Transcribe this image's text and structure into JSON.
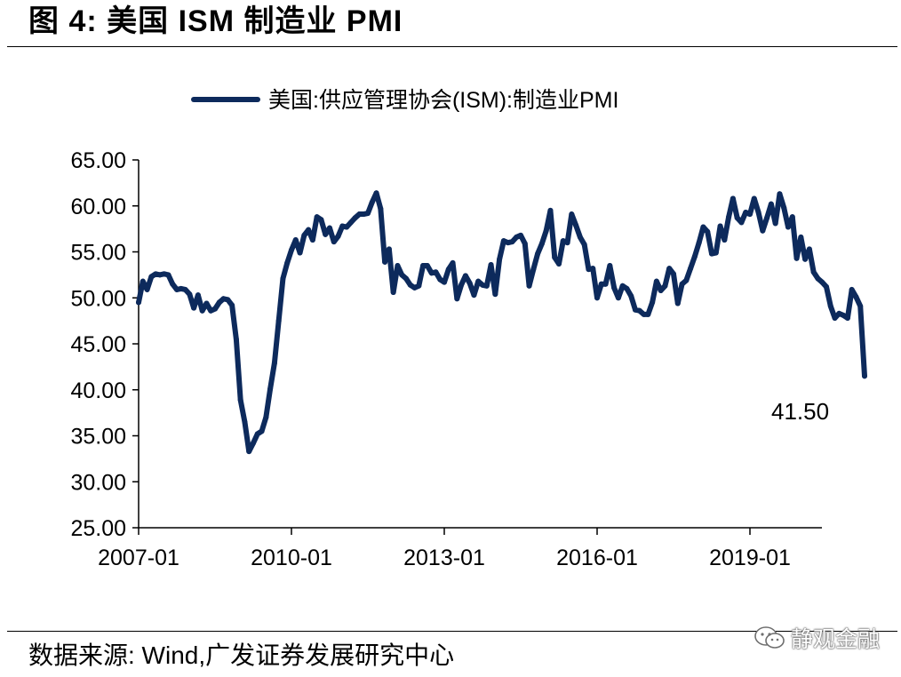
{
  "header": {
    "title": "图 4:  美国 ISM 制造业 PMI"
  },
  "footer": {
    "source": "数据来源:  Wind,广发证券发展研究中心",
    "watermark_text": "静观金融",
    "watermark_icon": "wechat-icon"
  },
  "colors": {
    "series": "#0d2a5c",
    "axis": "#000000",
    "text": "#000000"
  },
  "chart_data": {
    "type": "line",
    "title": "",
    "xlabel": "",
    "ylabel": "",
    "ylim": [
      25,
      65
    ],
    "y_ticks": [
      "25.00",
      "30.00",
      "35.00",
      "40.00",
      "45.00",
      "50.00",
      "55.00",
      "60.00",
      "65.00"
    ],
    "x_ticks": [
      "2007-01",
      "2010-01",
      "2013-01",
      "2016-01",
      "2019-01"
    ],
    "grid": false,
    "legend_position": "top-center",
    "last_value_label": "41.50",
    "series": [
      {
        "name": "美国:供应管理协会(ISM):制造业PMI",
        "x_start": "2007-01",
        "frequency": "monthly",
        "values": [
          49.5,
          51.8,
          50.9,
          52.3,
          52.6,
          52.5,
          52.6,
          52.5,
          51.5,
          50.9,
          51.0,
          50.9,
          50.4,
          48.9,
          50.3,
          48.6,
          49.4,
          48.6,
          48.8,
          49.5,
          49.9,
          49.8,
          49.2,
          45.5,
          38.9,
          36.5,
          33.3,
          34.2,
          35.2,
          35.5,
          37.0,
          40.1,
          42.9,
          47.5,
          52.1,
          53.8,
          55.2,
          56.3,
          54.9,
          56.8,
          57.4,
          56.3,
          58.8,
          58.5,
          56.9,
          57.6,
          56.1,
          56.7,
          57.8,
          57.7,
          58.2,
          58.7,
          59.1,
          59.1,
          59.2,
          60.4,
          61.4,
          59.7,
          53.9,
          55.3,
          50.6,
          53.5,
          52.5,
          52.1,
          51.4,
          51.1,
          51.3,
          53.5,
          53.5,
          52.7,
          52.8,
          52.0,
          51.7,
          53.1,
          53.8,
          49.9,
          51.4,
          52.4,
          51.6,
          50.3,
          51.8,
          51.4,
          51.3,
          53.6,
          50.4,
          54.2,
          56.2,
          56.0,
          56.1,
          56.6,
          56.8,
          55.9,
          51.3,
          53.1,
          54.8,
          55.9,
          57.3,
          59.5,
          54.4,
          53.7,
          56.2,
          56.0,
          59.1,
          57.9,
          56.6,
          55.8,
          53.1,
          53.2,
          50.0,
          51.5,
          51.5,
          53.5,
          51.1,
          50.0,
          51.3,
          51.0,
          50.2,
          48.7,
          48.6,
          48.2,
          48.2,
          49.5,
          51.8,
          50.8,
          51.3,
          53.2,
          52.6,
          49.4,
          51.5,
          51.9,
          53.2,
          54.5,
          56.0,
          57.7,
          57.2,
          54.8,
          54.9,
          57.8,
          56.3,
          58.8,
          60.8,
          58.7,
          58.2,
          59.3,
          59.1,
          60.8,
          59.3,
          57.3,
          58.7,
          60.2,
          58.1,
          61.3,
          59.8,
          57.7,
          58.8,
          54.3,
          56.6,
          54.2,
          55.3,
          52.8,
          52.1,
          51.7,
          51.2,
          49.1,
          47.8,
          48.3,
          48.1,
          47.8,
          50.9,
          50.1,
          49.1,
          41.5
        ]
      }
    ]
  }
}
